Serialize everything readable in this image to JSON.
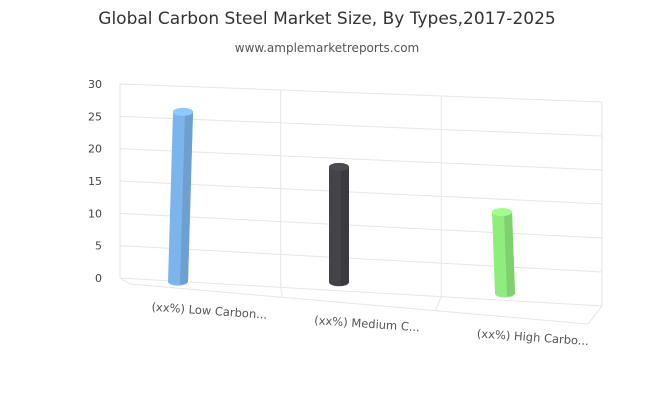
{
  "chart_data": {
    "type": "bar",
    "title": "Global Carbon Steel Market Size, By Types,2017-2025",
    "subtitle": "www.amplemarketreports.com",
    "categories": [
      "(xx%) Low Carbon...",
      "(xx%) Medium C...",
      "(xx%) High Carbo..."
    ],
    "values": [
      25,
      17,
      12
    ],
    "colors": [
      "#7cb5ec",
      "#434348",
      "#90ed7d"
    ],
    "ylim": [
      0,
      30
    ],
    "yticks": [
      0,
      5,
      10,
      15,
      20,
      25,
      30
    ],
    "xlabel": "",
    "ylabel": "",
    "grid": true,
    "legend": "none",
    "style": "3d-cylinder"
  }
}
